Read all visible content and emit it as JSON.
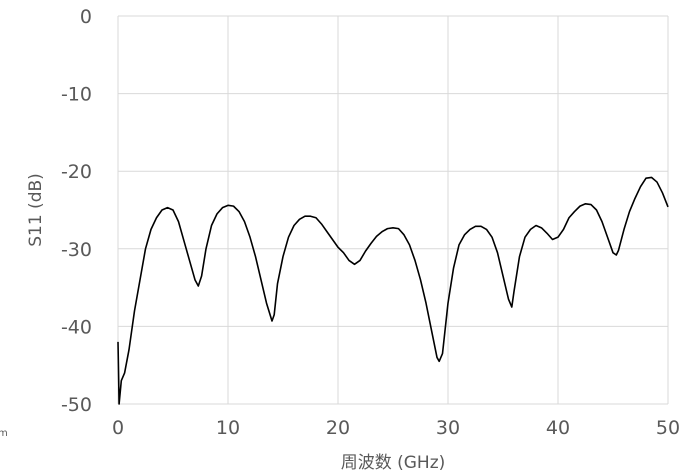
{
  "colors": {
    "series": "#000000",
    "grid": "#d9d9d9",
    "text": "#595959"
  },
  "chart_data": {
    "type": "line",
    "title": "",
    "xlabel": "周波数 (GHz)",
    "ylabel": "S11 (dB)",
    "xlim": [
      0,
      50
    ],
    "ylim": [
      -50,
      0
    ],
    "xticks": [
      0,
      10,
      20,
      30,
      40,
      50
    ],
    "yticks": [
      0,
      -10,
      -20,
      -30,
      -40,
      -50
    ],
    "grid": true,
    "legend": "none",
    "series": [
      {
        "x": [
          0,
          0.1,
          0.3,
          0.6,
          1,
          1.5,
          2,
          2.5,
          3,
          3.5,
          4,
          4.5,
          5,
          5.5,
          6,
          6.5,
          7,
          7.3,
          7.6,
          8,
          8.5,
          9,
          9.5,
          10,
          10.5,
          11,
          11.5,
          12,
          12.5,
          13,
          13.5,
          14,
          14.2,
          14.5,
          15,
          15.5,
          16,
          16.5,
          17,
          17.5,
          18,
          18.5,
          19,
          19.5,
          20,
          20.5,
          21,
          21.5,
          22,
          22.5,
          23,
          23.5,
          24,
          24.5,
          25,
          25.5,
          26,
          26.5,
          27,
          27.5,
          28,
          28.5,
          29,
          29.2,
          29.5,
          30,
          30.5,
          31,
          31.5,
          32,
          32.5,
          33,
          33.5,
          34,
          34.5,
          35,
          35.5,
          35.8,
          36,
          36.5,
          37,
          37.5,
          38,
          38.5,
          39,
          39.5,
          40,
          40.5,
          41,
          41.5,
          42,
          42.5,
          43,
          43.5,
          44,
          44.5,
          45,
          45.3,
          45.5,
          46,
          46.5,
          47,
          47.5,
          48,
          48.5,
          49,
          49.5,
          50
        ],
        "y": [
          -42,
          -50,
          -47,
          -46,
          -43,
          -38,
          -34,
          -30,
          -27.5,
          -26,
          -25,
          -24.7,
          -25,
          -26.5,
          -29,
          -31.5,
          -34,
          -34.8,
          -33.5,
          -30,
          -27,
          -25.5,
          -24.7,
          -24.4,
          -24.5,
          -25.2,
          -26.5,
          -28.5,
          -31,
          -34,
          -37,
          -39.3,
          -38.5,
          -34.5,
          -31,
          -28.5,
          -27,
          -26.2,
          -25.8,
          -25.8,
          -26,
          -26.8,
          -27.8,
          -28.8,
          -29.8,
          -30.5,
          -31.5,
          -32,
          -31.5,
          -30.3,
          -29.3,
          -28.4,
          -27.8,
          -27.4,
          -27.3,
          -27.4,
          -28.2,
          -29.5,
          -31.5,
          -34,
          -37,
          -40.5,
          -44,
          -44.5,
          -43.5,
          -37,
          -32.5,
          -29.5,
          -28.2,
          -27.5,
          -27.1,
          -27.1,
          -27.5,
          -28.5,
          -30.5,
          -33.5,
          -36.5,
          -37.5,
          -35.5,
          -31,
          -28.5,
          -27.5,
          -27,
          -27.3,
          -28,
          -28.8,
          -28.5,
          -27.5,
          -26,
          -25.2,
          -24.5,
          -24.2,
          -24.3,
          -25,
          -26.5,
          -28.5,
          -30.5,
          -30.8,
          -30.2,
          -27.5,
          -25.2,
          -23.5,
          -22,
          -20.9,
          -20.8,
          -21.4,
          -22.8,
          -24.6
        ]
      }
    ]
  }
}
